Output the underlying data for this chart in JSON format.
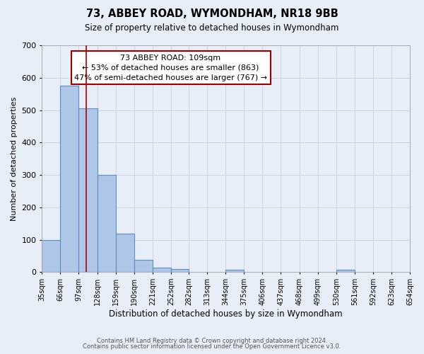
{
  "title": "73, ABBEY ROAD, WYMONDHAM, NR18 9BB",
  "subtitle": "Size of property relative to detached houses in Wymondham",
  "xlabel": "Distribution of detached houses by size in Wymondham",
  "ylabel": "Number of detached properties",
  "bar_edges": [
    35,
    66,
    97,
    128,
    159,
    190,
    221,
    252,
    282,
    313,
    344,
    375,
    406,
    437,
    468,
    499,
    530,
    561,
    592,
    623,
    654
  ],
  "bar_heights": [
    100,
    575,
    505,
    300,
    118,
    37,
    14,
    10,
    0,
    0,
    8,
    0,
    0,
    0,
    0,
    0,
    8,
    0,
    0,
    0
  ],
  "bar_color": "#aec6e8",
  "bar_edge_color": "#5a8fc2",
  "background_color": "#e8eef8",
  "grid_color": "#c8d0de",
  "red_line_x": 109,
  "annotation_line1": "73 ABBEY ROAD: 109sqm",
  "annotation_line2": "← 53% of detached houses are smaller (863)",
  "annotation_line3": "47% of semi-detached houses are larger (767) →",
  "annotation_box_color": "#ffffff",
  "annotation_box_edge": "#990000",
  "ylim": [
    0,
    700
  ],
  "yticks": [
    0,
    100,
    200,
    300,
    400,
    500,
    600,
    700
  ],
  "tick_labels": [
    "35sqm",
    "66sqm",
    "97sqm",
    "128sqm",
    "159sqm",
    "190sqm",
    "221sqm",
    "252sqm",
    "282sqm",
    "313sqm",
    "344sqm",
    "375sqm",
    "406sqm",
    "437sqm",
    "468sqm",
    "499sqm",
    "530sqm",
    "561sqm",
    "592sqm",
    "623sqm",
    "654sqm"
  ],
  "footer1": "Contains HM Land Registry data © Crown copyright and database right 2024.",
  "footer2": "Contains public sector information licensed under the Open Government Licence v3.0."
}
